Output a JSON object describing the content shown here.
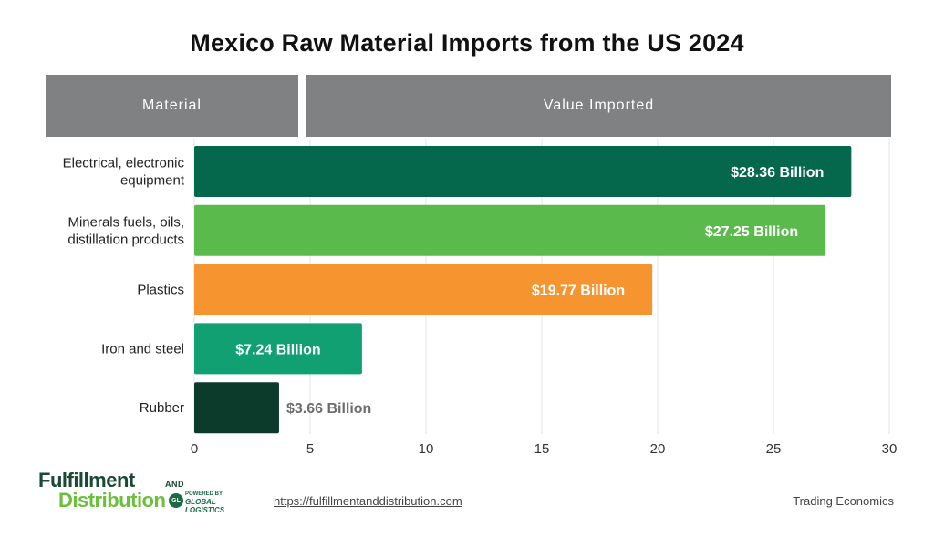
{
  "page_title": "Mexico Raw Material Imports from the US 2024",
  "table_headers": {
    "material": "Material",
    "value": "Value Imported"
  },
  "chart_data": {
    "type": "bar",
    "orientation": "horizontal",
    "title": "Mexico Raw Material Imports from the US 2024",
    "categories": [
      "Electrical, electronic equipment",
      "Minerals fuels, oils, distillation products",
      "Plastics",
      "Iron and steel",
      "Rubber"
    ],
    "category_lines": [
      [
        "Electrical, electronic",
        "equipment"
      ],
      [
        "Minerals fuels, oils,",
        "distillation products"
      ],
      [
        "Plastics"
      ],
      [
        "Iron and steel"
      ],
      [
        "Rubber"
      ]
    ],
    "values": [
      28.36,
      27.25,
      19.77,
      7.24,
      3.66
    ],
    "data_labels": [
      "$28.36 Billion",
      "$27.25 Billion",
      "$19.77 Billion",
      "$7.24 Billion",
      "$3.66 Billion"
    ],
    "colors": [
      "#05674b",
      "#5aba4b",
      "#f6952f",
      "#10a072",
      "#0c3a2b"
    ],
    "label_colors": [
      "#ffffff",
      "#ffffff",
      "#ffffff",
      "#ffffff",
      "#6d6d6d"
    ],
    "label_position": [
      "inside",
      "inside",
      "inside",
      "inside",
      "outside"
    ],
    "xlim": [
      0,
      30
    ],
    "xticks": [
      0,
      5,
      10,
      15,
      20,
      25,
      30
    ],
    "grid": true,
    "xlabel": "",
    "ylabel": ""
  },
  "footer": {
    "logo_line1": "Fulfillment",
    "logo_and": "AND",
    "logo_line2": "Distribution",
    "logo_badge": "GL",
    "logo_powered": "POWERED BY",
    "logo_global": "GLOBAL LOGISTICS",
    "url": "https://fulfillmentanddistribution.com",
    "source": "Trading Economics"
  }
}
